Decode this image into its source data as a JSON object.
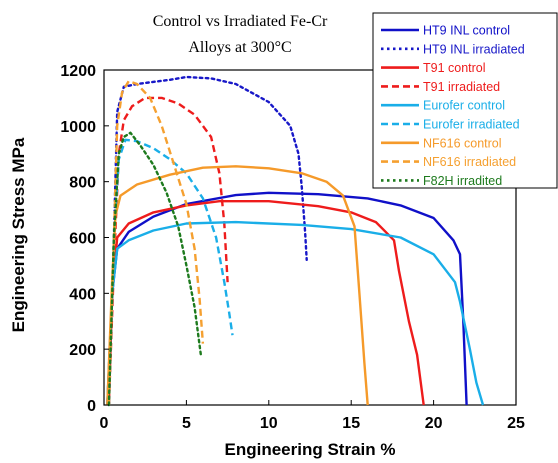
{
  "chart_data": {
    "type": "line",
    "title_lines": [
      "Control vs Irradiated  Fe-Cr",
      "Alloys at 300°C"
    ],
    "xlabel": "Engineering Strain %",
    "ylabel": "Engineering Stress MPa",
    "xlim": [
      0,
      25
    ],
    "ylim": [
      0,
      1200
    ],
    "x_ticks": [
      0,
      5,
      10,
      15,
      20,
      25
    ],
    "y_ticks": [
      0,
      200,
      400,
      600,
      800,
      1000,
      1200
    ],
    "grid": false,
    "legend_position": "top-right",
    "series": [
      {
        "name": "HT9 INL control",
        "color": "#1010c8",
        "dash": "solid",
        "points": [
          [
            0.2,
            0
          ],
          [
            0.5,
            400
          ],
          [
            0.8,
            560
          ],
          [
            1.5,
            620
          ],
          [
            3,
            675
          ],
          [
            5,
            720
          ],
          [
            8,
            752
          ],
          [
            10,
            760
          ],
          [
            13,
            755
          ],
          [
            16,
            740
          ],
          [
            18,
            715
          ],
          [
            20,
            670
          ],
          [
            21.2,
            590
          ],
          [
            21.6,
            540
          ],
          [
            21.8,
            300
          ],
          [
            22,
            0
          ]
        ]
      },
      {
        "name": "HT9 INL irradiated",
        "color": "#1818c8",
        "dash": "dot",
        "points": [
          [
            0.3,
            0
          ],
          [
            0.6,
            600
          ],
          [
            0.8,
            1050
          ],
          [
            1.2,
            1140
          ],
          [
            2,
            1150
          ],
          [
            4,
            1165
          ],
          [
            5,
            1175
          ],
          [
            6.5,
            1170
          ],
          [
            8,
            1150
          ],
          [
            10,
            1085
          ],
          [
            11.3,
            1000
          ],
          [
            11.8,
            900
          ],
          [
            12,
            780
          ],
          [
            12.2,
            620
          ],
          [
            12.3,
            520
          ]
        ]
      },
      {
        "name": "T91 control",
        "color": "#ee1c1c",
        "dash": "solid",
        "points": [
          [
            0.3,
            0
          ],
          [
            0.5,
            400
          ],
          [
            0.8,
            600
          ],
          [
            1.5,
            650
          ],
          [
            3,
            690
          ],
          [
            5,
            715
          ],
          [
            7,
            730
          ],
          [
            10,
            730
          ],
          [
            13,
            712
          ],
          [
            15,
            690
          ],
          [
            16.5,
            655
          ],
          [
            17.6,
            590
          ],
          [
            17.9,
            480
          ],
          [
            18.5,
            300
          ],
          [
            19,
            180
          ],
          [
            19.4,
            0
          ]
        ]
      },
      {
        "name": "T91 irradiated",
        "color": "#ee1c1c",
        "dash": "dash",
        "points": [
          [
            0.3,
            0
          ],
          [
            0.6,
            500
          ],
          [
            0.9,
            900
          ],
          [
            1.2,
            1020
          ],
          [
            1.7,
            1070
          ],
          [
            2.5,
            1100
          ],
          [
            3.5,
            1100
          ],
          [
            4.5,
            1080
          ],
          [
            5.5,
            1040
          ],
          [
            6.5,
            960
          ],
          [
            7,
            830
          ],
          [
            7.3,
            650
          ],
          [
            7.5,
            440
          ]
        ]
      },
      {
        "name": "Eurofer control",
        "color": "#1aaee8",
        "dash": "solid",
        "points": [
          [
            0.2,
            0
          ],
          [
            0.5,
            400
          ],
          [
            0.8,
            560
          ],
          [
            1.5,
            590
          ],
          [
            3,
            625
          ],
          [
            5,
            650
          ],
          [
            8,
            655
          ],
          [
            12,
            645
          ],
          [
            15,
            630
          ],
          [
            18,
            600
          ],
          [
            20,
            540
          ],
          [
            21.3,
            440
          ],
          [
            21.6,
            370
          ],
          [
            22.2,
            200
          ],
          [
            22.6,
            80
          ],
          [
            23,
            0
          ]
        ]
      },
      {
        "name": "Eurofer irradiated",
        "color": "#1aaee8",
        "dash": "dash",
        "points": [
          [
            0.3,
            0
          ],
          [
            0.6,
            600
          ],
          [
            0.9,
            880
          ],
          [
            1.3,
            950
          ],
          [
            2,
            945
          ],
          [
            3,
            920
          ],
          [
            4,
            880
          ],
          [
            5,
            830
          ],
          [
            6,
            740
          ],
          [
            6.8,
            600
          ],
          [
            7.3,
            440
          ],
          [
            7.6,
            330
          ],
          [
            7.8,
            250
          ]
        ]
      },
      {
        "name": "NF616 control",
        "color": "#f59a2a",
        "dash": "solid",
        "points": [
          [
            0.2,
            0
          ],
          [
            0.5,
            450
          ],
          [
            0.7,
            680
          ],
          [
            1,
            750
          ],
          [
            2,
            790
          ],
          [
            4,
            825
          ],
          [
            6,
            850
          ],
          [
            8,
            855
          ],
          [
            10,
            848
          ],
          [
            12,
            830
          ],
          [
            13.5,
            800
          ],
          [
            14.5,
            750
          ],
          [
            15.2,
            640
          ],
          [
            15.5,
            400
          ],
          [
            15.8,
            150
          ],
          [
            16,
            0
          ]
        ]
      },
      {
        "name": "NF616 irradiated",
        "color": "#f5a030",
        "dash": "dash",
        "points": [
          [
            0.3,
            0
          ],
          [
            0.6,
            600
          ],
          [
            0.8,
            1000
          ],
          [
            1.1,
            1120
          ],
          [
            1.5,
            1160
          ],
          [
            2,
            1150
          ],
          [
            2.8,
            1100
          ],
          [
            3.5,
            1000
          ],
          [
            4.2,
            870
          ],
          [
            5,
            720
          ],
          [
            5.5,
            560
          ],
          [
            5.8,
            380
          ],
          [
            6,
            220
          ]
        ]
      },
      {
        "name": "F82H irradited",
        "color": "#1d7a1d",
        "dash": "dot",
        "points": [
          [
            0.3,
            0
          ],
          [
            0.6,
            600
          ],
          [
            0.9,
            900
          ],
          [
            1.2,
            960
          ],
          [
            1.6,
            975
          ],
          [
            2.2,
            930
          ],
          [
            3,
            860
          ],
          [
            3.8,
            760
          ],
          [
            4.5,
            640
          ],
          [
            5,
            500
          ],
          [
            5.5,
            350
          ],
          [
            5.9,
            170
          ]
        ]
      }
    ]
  }
}
